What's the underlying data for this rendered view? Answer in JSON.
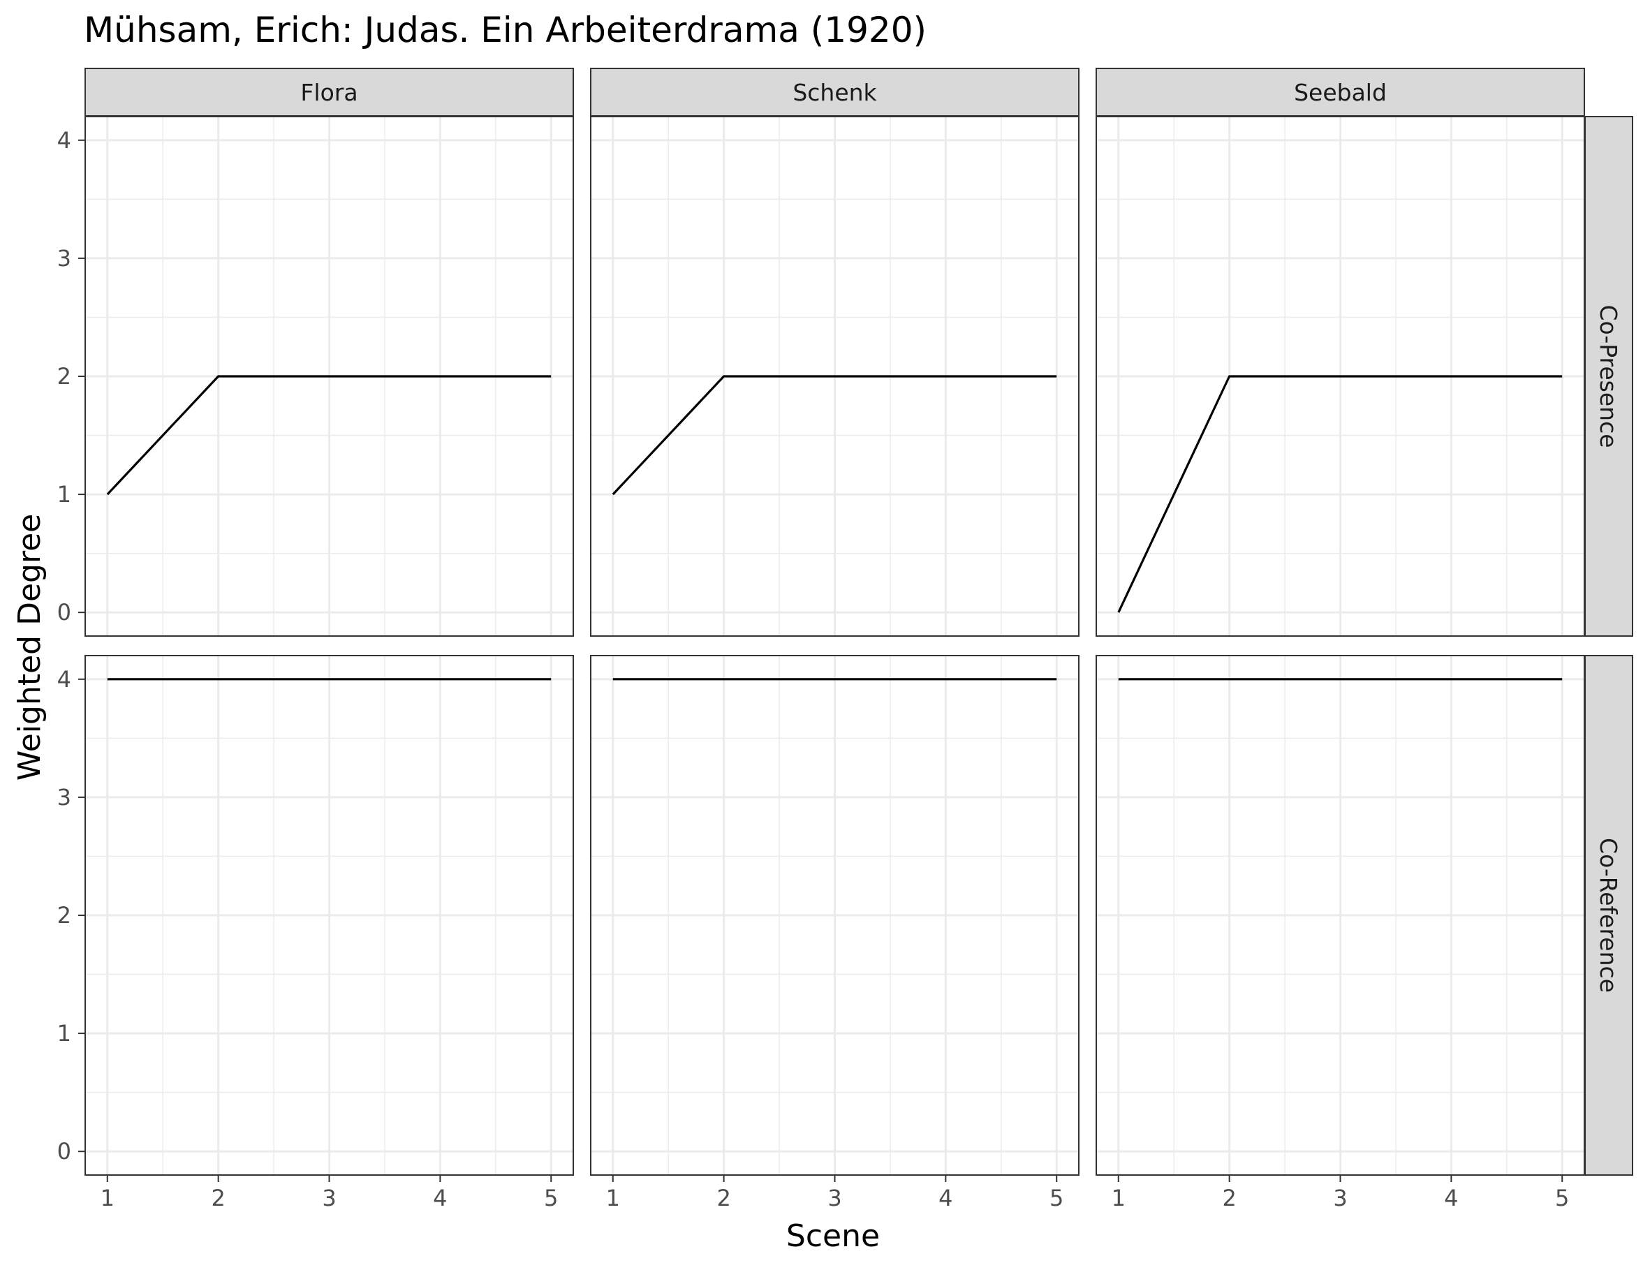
{
  "chart_data": {
    "type": "line",
    "title": "Mühsam, Erich: Judas. Ein Arbeiterdrama (1920)",
    "xlabel": "Scene",
    "ylabel": "Weighted Degree",
    "x_ticks": [
      1,
      2,
      3,
      4,
      5
    ],
    "y_ticks": [
      0,
      1,
      2,
      3,
      4
    ],
    "xlim": [
      0.8,
      5.2
    ],
    "ylim": [
      -0.2,
      4.2
    ],
    "grid": true,
    "columns": [
      "Flora",
      "Schenk",
      "Seebald"
    ],
    "rows": [
      "Co-Presence",
      "Co-Reference"
    ],
    "line_color": "#000000",
    "strip_color": "#d9d9d9",
    "grid_color": "#ebebeb",
    "panels": [
      {
        "row": "Co-Presence",
        "column": "Flora",
        "x": [
          1,
          2,
          3,
          4,
          5
        ],
        "y": [
          1,
          2,
          2,
          2,
          2
        ]
      },
      {
        "row": "Co-Presence",
        "column": "Schenk",
        "x": [
          1,
          2,
          3,
          4,
          5
        ],
        "y": [
          1,
          2,
          2,
          2,
          2
        ]
      },
      {
        "row": "Co-Presence",
        "column": "Seebald",
        "x": [
          1,
          2,
          3,
          4,
          5
        ],
        "y": [
          0,
          2,
          2,
          2,
          2
        ]
      },
      {
        "row": "Co-Reference",
        "column": "Flora",
        "x": [
          1,
          2,
          3,
          4,
          5
        ],
        "y": [
          4,
          4,
          4,
          4,
          4
        ]
      },
      {
        "row": "Co-Reference",
        "column": "Schenk",
        "x": [
          1,
          2,
          3,
          4,
          5
        ],
        "y": [
          4,
          4,
          4,
          4,
          4
        ]
      },
      {
        "row": "Co-Reference",
        "column": "Seebald",
        "x": [
          1,
          2,
          3,
          4,
          5
        ],
        "y": [
          4,
          4,
          4,
          4,
          4
        ]
      }
    ]
  }
}
